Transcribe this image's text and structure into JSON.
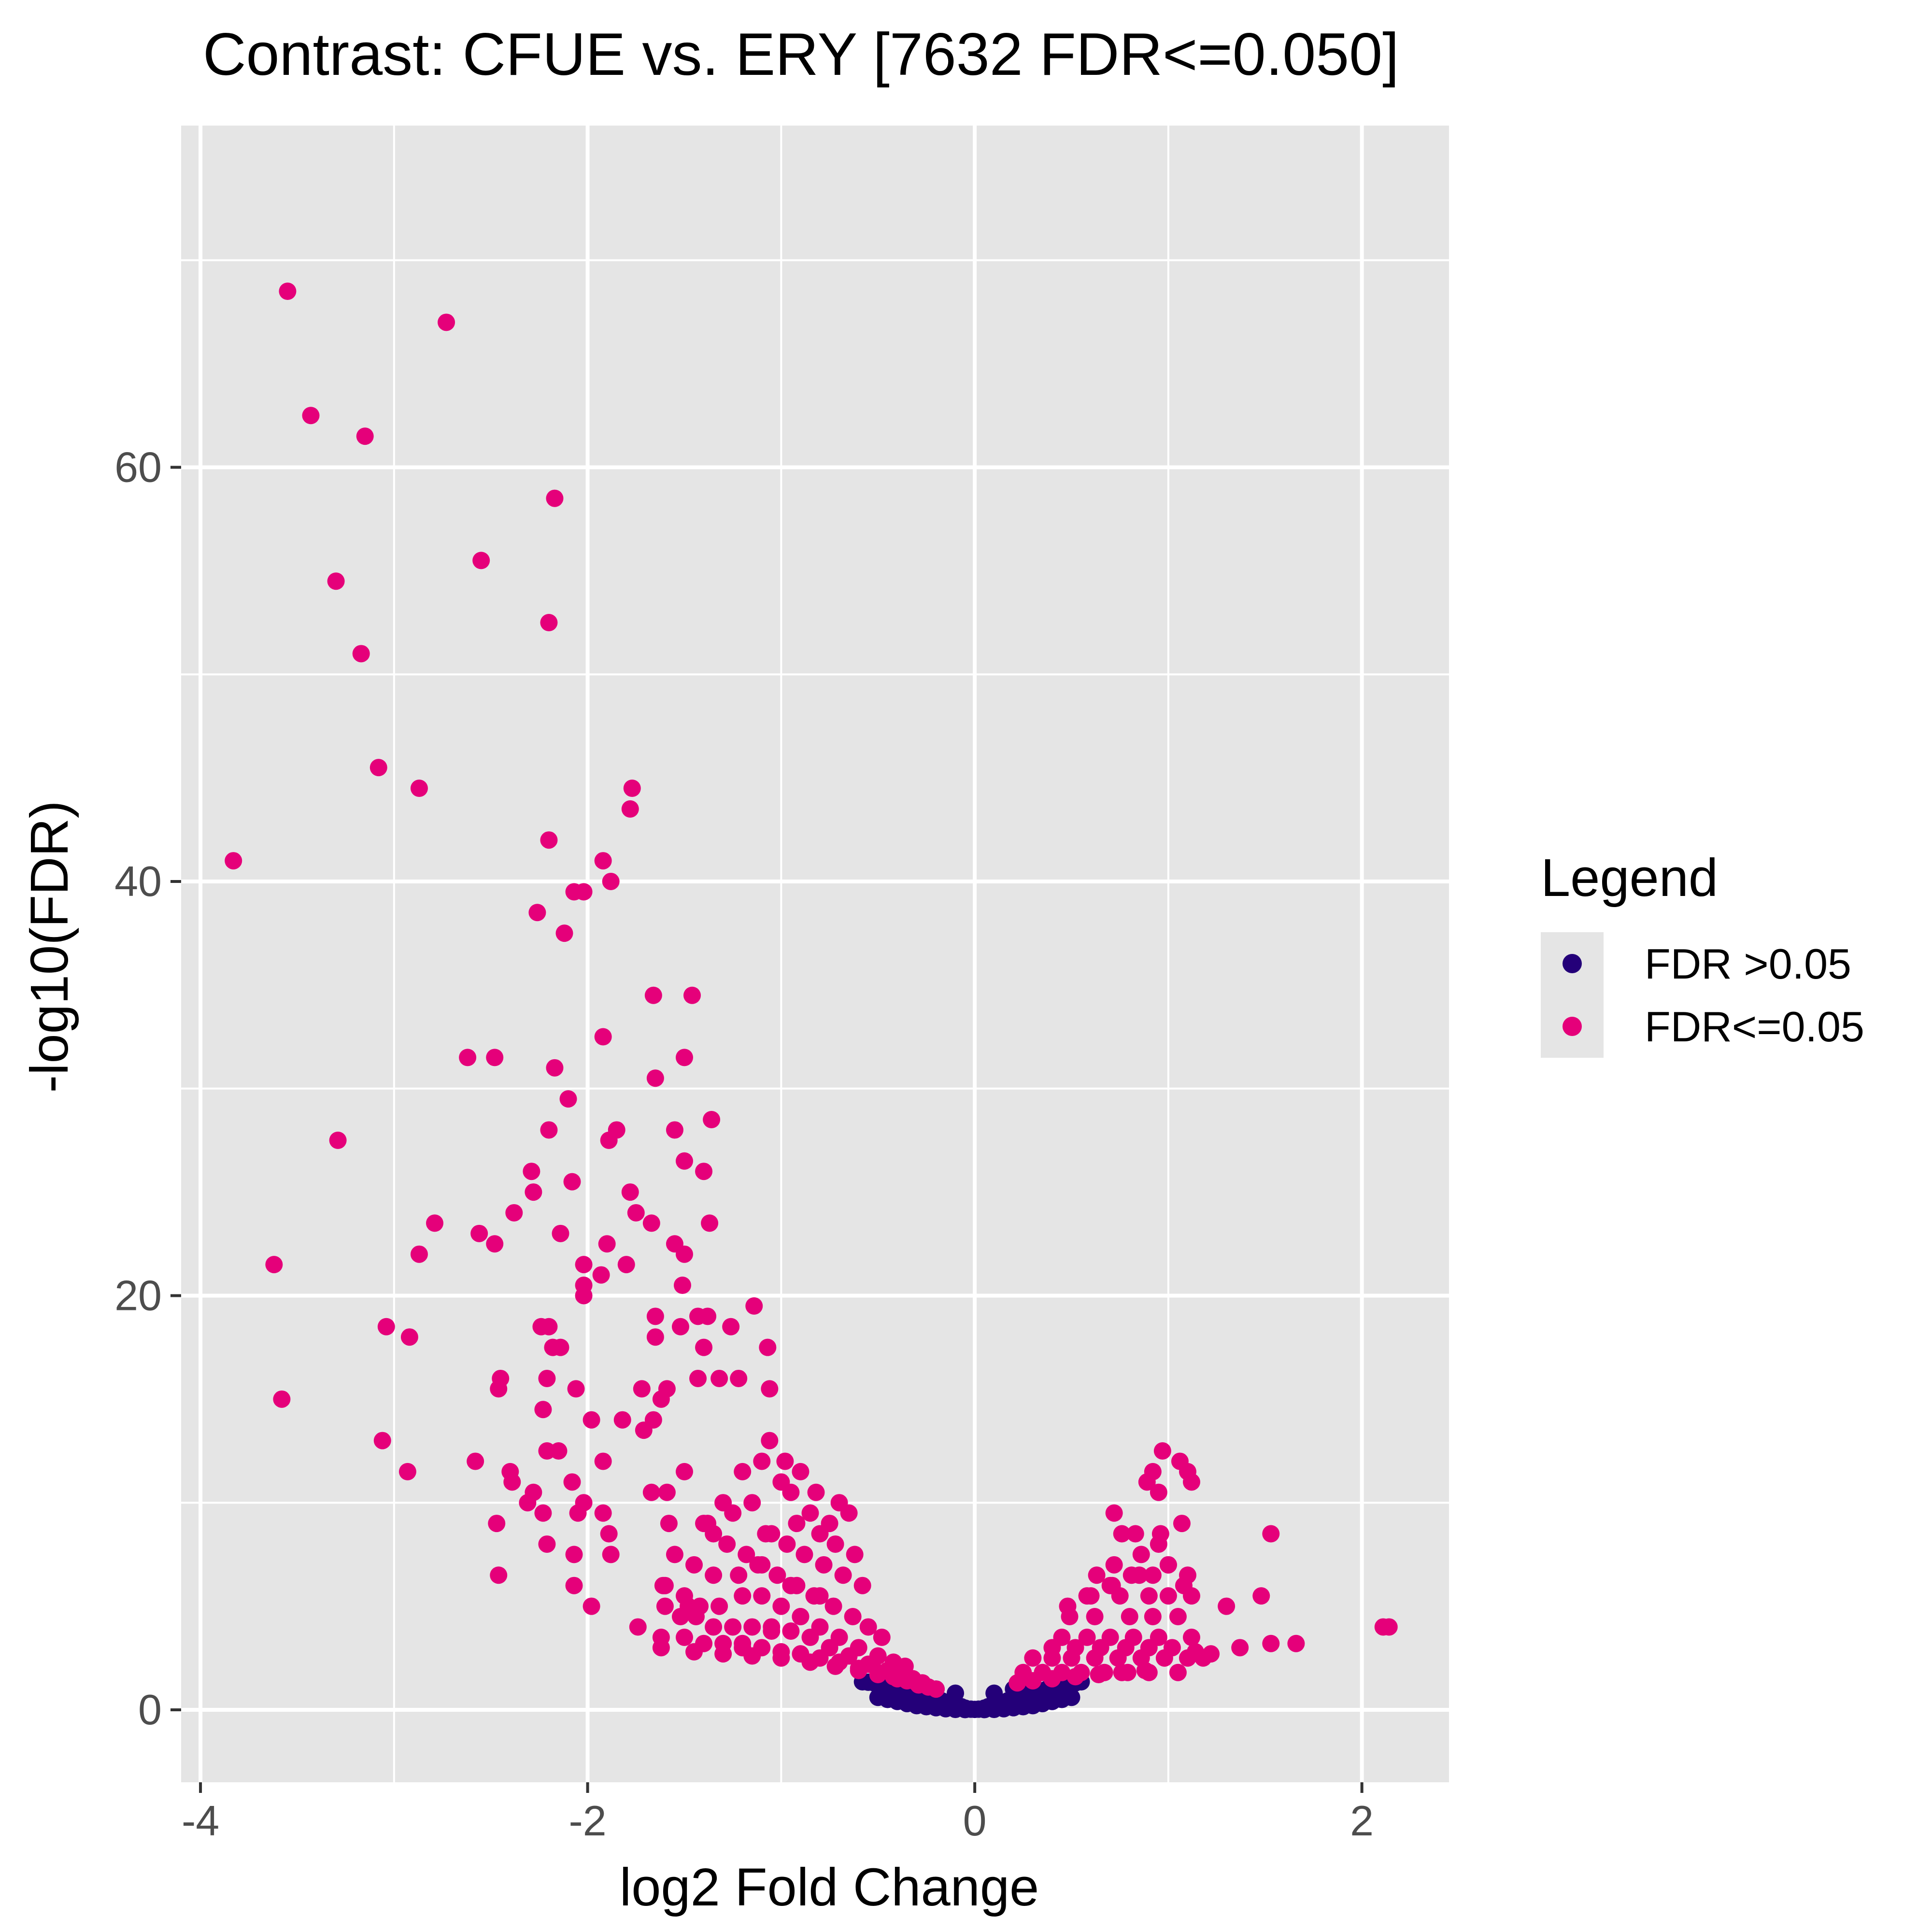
{
  "chart_data": {
    "type": "scatter",
    "title": "Contrast: CFUE vs. ERY  [7632 FDR<=0.050]",
    "xlabel": "log2 Fold Change",
    "ylabel": "-log10(FDR)",
    "xlim": [
      -4.1,
      2.45
    ],
    "ylim": [
      -3.5,
      76.5
    ],
    "x_ticks": [
      -4,
      -2,
      0,
      2
    ],
    "x_tick_labels": [
      "-4",
      "-2",
      "0",
      "2"
    ],
    "y_ticks": [
      0,
      20,
      40,
      60
    ],
    "y_tick_labels": [
      "0",
      "20",
      "40",
      "60"
    ],
    "grid": true,
    "panel_background": "#e5e5e5",
    "legend": {
      "title": "Legend",
      "position": "right",
      "entries": [
        {
          "label": "FDR >0.05",
          "color": "#240079"
        },
        {
          "label": "FDR<=0.05",
          "color": "#e5007a"
        }
      ]
    },
    "series": [
      {
        "name": "FDR>0.05",
        "color": "#240079",
        "x": [
          -0.58,
          -0.55,
          -0.52,
          -0.5,
          -0.47,
          -0.45,
          -0.42,
          -0.4,
          -0.37,
          -0.35,
          -0.32,
          -0.3,
          -0.27,
          -0.25,
          -0.22,
          -0.2,
          -0.17,
          -0.15,
          -0.12,
          -0.1,
          -0.07,
          -0.05,
          -0.02,
          0,
          0.02,
          0.05,
          0.07,
          0.1,
          0.12,
          0.15,
          0.17,
          0.2,
          0.22,
          0.25,
          0.27,
          0.3,
          0.32,
          0.35,
          0.37,
          0.4,
          0.42,
          0.45,
          0.47,
          0.5,
          0.52,
          0.55,
          -0.5,
          -0.45,
          -0.4,
          -0.35,
          -0.3,
          -0.25,
          -0.2,
          -0.15,
          -0.1,
          -0.05,
          0.05,
          0.1,
          0.15,
          0.2,
          0.25,
          0.3,
          0.35,
          0.4,
          0.45,
          0.5,
          -0.3,
          -0.2,
          -0.1,
          0.1,
          0.2,
          0.3
        ],
        "y": [
          1.35,
          1.33,
          1.3,
          1.25,
          1.2,
          1.15,
          1.1,
          1.05,
          0.98,
          0.92,
          0.85,
          0.78,
          0.72,
          0.65,
          0.58,
          0.5,
          0.43,
          0.36,
          0.3,
          0.22,
          0.15,
          0.08,
          0.03,
          0.02,
          0.03,
          0.08,
          0.15,
          0.22,
          0.3,
          0.36,
          0.43,
          0.5,
          0.58,
          0.65,
          0.72,
          0.78,
          0.85,
          0.92,
          0.98,
          1.05,
          1.1,
          1.15,
          1.2,
          1.25,
          1.3,
          1.35,
          0.6,
          0.5,
          0.4,
          0.3,
          0.2,
          0.15,
          0.1,
          0.05,
          0.02,
          0.01,
          0.01,
          0.02,
          0.05,
          0.1,
          0.15,
          0.2,
          0.3,
          0.4,
          0.5,
          0.6,
          1.2,
          1.0,
          0.8,
          0.8,
          1.0,
          1.2
        ]
      },
      {
        "name": "FDR<=0.05",
        "color": "#e5007a",
        "x": [
          -3.55,
          -2.73,
          -3.43,
          -3.15,
          -2.17,
          -2.55,
          -3.3,
          -2.2,
          -3.17,
          -3.08,
          -2.87,
          -1.77,
          -1.78,
          -3.83,
          -2.2,
          -1.92,
          -1.88,
          -2.07,
          -2.02,
          -2.26,
          -2.12,
          -1.66,
          -1.46,
          -1.92,
          -2.62,
          -2.48,
          -2.17,
          -1.65,
          -1.5,
          -2.1,
          -1.36,
          -1.89,
          -2.2,
          -1.85,
          -1.55,
          -1.5,
          -1.4,
          -3.29,
          -2.29,
          -2.08,
          -1.78,
          -1.75,
          -2.28,
          -2.38,
          -1.67,
          -1.37,
          -1.55,
          -1.5,
          -2.79,
          -2.56,
          -2.48,
          -2.14,
          -1.9,
          -2.02,
          -1.93,
          -2.87,
          -1.8,
          -3.62,
          -2.02,
          -2.02,
          -1.51,
          -1.65,
          -1.43,
          -1.52,
          -1.14,
          -1.38,
          -1.26,
          -3.04,
          -2.24,
          -2.2,
          -2.14,
          -2.18,
          -2.92,
          -1.65,
          -1.4,
          -1.07,
          -3.58,
          -2.46,
          -2.45,
          -2.21,
          -2.06,
          -1.72,
          -1.62,
          -1.59,
          -1.43,
          -1.32,
          -1.22,
          -1.06,
          -3.06,
          -2.21,
          -2.23,
          -1.98,
          -1.82,
          -1.71,
          -1.66,
          -2.93,
          -2.58,
          -2.15,
          -2.4,
          -2.08,
          -1.92,
          -1.5,
          -2.39,
          -2.28,
          -2.31,
          -2.02,
          -1.67,
          -1.59,
          -2.47,
          -2.23,
          -2.05,
          -1.92,
          -1.58,
          -1.38,
          -2.46,
          -2.21,
          -2.07,
          -1.89,
          -2.07,
          -1.88,
          -1.98,
          -1.61,
          -1.74,
          -1.48,
          -1.06,
          -0.98,
          -0.9,
          -0.82,
          -0.7,
          -0.65,
          -1.2,
          -1.1,
          -1.0,
          -0.95,
          -0.85,
          -0.75,
          -1.3,
          -1.25,
          -1.15,
          -1.05,
          -0.92,
          -0.8,
          -0.72,
          -0.62,
          -1.4,
          -1.35,
          -1.28,
          -1.18,
          -1.08,
          -0.97,
          -0.88,
          -0.78,
          -0.68,
          -0.58,
          -1.55,
          -1.45,
          -1.35,
          -1.22,
          -1.12,
          -1.02,
          -0.92,
          -0.83,
          -0.73,
          -0.63,
          -0.55,
          -0.48,
          -1.6,
          -1.5,
          -1.42,
          -1.32,
          -1.2,
          -1.1,
          -1.0,
          -0.9,
          -0.8,
          -0.7,
          -0.6,
          -0.5,
          -0.42,
          -0.36,
          -1.6,
          -1.52,
          -1.44,
          -1.35,
          -1.25,
          -1.15,
          -1.05,
          -0.95,
          -0.85,
          -0.75,
          -0.65,
          -0.55,
          -0.45,
          -0.38,
          -0.32,
          -0.27,
          -1.62,
          -1.5,
          -1.4,
          -1.3,
          -1.2,
          -1.1,
          -1.0,
          -0.9,
          -0.8,
          -0.7,
          -0.6,
          -0.5,
          -0.42,
          -0.35,
          -0.29,
          -0.24,
          -0.2,
          -1.62,
          -1.45,
          -1.3,
          -1.15,
          -1.0,
          -0.85,
          -0.72,
          -0.6,
          -0.5,
          -0.4,
          -0.3,
          -1.1,
          -0.95,
          -0.8,
          -0.9,
          -1.05,
          -1.2,
          0.97,
          1.06,
          1.1,
          0.89,
          0.92,
          1.12,
          0.72,
          0.95,
          0.76,
          0.96,
          1.07,
          0.83,
          0.86,
          0.95,
          0.72,
          1.08,
          0.92,
          1.53,
          0.63,
          0.71,
          0.81,
          1.0,
          1.1,
          0.58,
          0.75,
          0.9,
          1.0,
          1.12,
          1.48,
          0.49,
          0.62,
          0.8,
          0.92,
          1.05,
          1.3,
          0.45,
          0.58,
          0.7,
          0.82,
          0.95,
          1.12,
          1.53,
          1.66,
          0.4,
          0.52,
          0.65,
          0.78,
          0.9,
          1.02,
          1.14,
          1.22,
          1.37,
          2.11,
          2.14,
          0.3,
          0.4,
          0.5,
          0.62,
          0.74,
          0.86,
          0.98,
          1.1,
          1.18,
          0.25,
          0.35,
          0.45,
          0.55,
          0.67,
          0.79,
          0.9,
          1.05,
          0.22,
          0.3,
          0.4,
          0.52,
          0.64,
          0.76,
          0.88,
          0.48,
          0.6,
          0.7,
          0.85,
          1.0
        ],
        "y": [
          68.5,
          67,
          62.5,
          61.5,
          58.5,
          55.5,
          54.5,
          52.5,
          51,
          45.5,
          44.5,
          44.5,
          43.5,
          41,
          42,
          41,
          40,
          39.5,
          39.5,
          38.5,
          37.5,
          34.5,
          34.5,
          32.5,
          31.5,
          31.5,
          31,
          30.5,
          31.5,
          29.5,
          28.5,
          27.5,
          28,
          28,
          28,
          26.5,
          26,
          27.5,
          26,
          25.5,
          25,
          24,
          25,
          24,
          23.5,
          23.5,
          22.5,
          22,
          23.5,
          23,
          22.5,
          23,
          22.5,
          21.5,
          21,
          22,
          21.5,
          21.5,
          20.5,
          20,
          20.5,
          19,
          19,
          18.5,
          19.5,
          19,
          18.5,
          18.5,
          18.5,
          18.5,
          17.5,
          17.5,
          18,
          18,
          17.5,
          17.5,
          15,
          15.5,
          16,
          16,
          15.5,
          15.5,
          15,
          15.5,
          16,
          16,
          16,
          15.5,
          13,
          12.5,
          14.5,
          14,
          14,
          13.5,
          14,
          11.5,
          12,
          12.5,
          11.5,
          11,
          12,
          11.5,
          11,
          10.5,
          10,
          10,
          10.5,
          10.5,
          9,
          9.5,
          9.5,
          9.5,
          9,
          9,
          6.5,
          8,
          7.5,
          8.5,
          6,
          7.5,
          5,
          6,
          4,
          5,
          13,
          12,
          11.5,
          10.5,
          10,
          9.5,
          11.5,
          12,
          11,
          10.5,
          9.5,
          9,
          10,
          9.5,
          10,
          8.5,
          9,
          8.5,
          8,
          7.5,
          9,
          8.5,
          8,
          7.5,
          8.5,
          8,
          7.5,
          7,
          6.5,
          6,
          7.5,
          7,
          6.5,
          6.5,
          7,
          6.5,
          6,
          5.5,
          5,
          4.5,
          4,
          3.5,
          6,
          5.5,
          5,
          5,
          5.5,
          5.5,
          5,
          4.5,
          4,
          3.5,
          3,
          2.6,
          2.3,
          2.1,
          5,
          4.5,
          4.5,
          4,
          4,
          4,
          4,
          3.8,
          3.5,
          3,
          2.6,
          2.2,
          1.9,
          1.7,
          1.5,
          1.3,
          3.5,
          3.5,
          3.2,
          3.2,
          3,
          3,
          2.8,
          2.7,
          2.5,
          2.3,
          2,
          1.8,
          1.6,
          1.4,
          1.2,
          1.1,
          1,
          3,
          2.8,
          2.7,
          2.6,
          2.5,
          2.3,
          2.1,
          1.9,
          1.7,
          1.5,
          1.3,
          7,
          6,
          5.5,
          4.5,
          3.8,
          3.2,
          12.5,
          12,
          11.5,
          11,
          11.5,
          11,
          9.5,
          10.5,
          8.5,
          8.5,
          9,
          8.5,
          7.5,
          8,
          7,
          6,
          6.5,
          8.5,
          6.5,
          6,
          6.5,
          7,
          6.5,
          5.5,
          5.5,
          5.5,
          5.5,
          5.5,
          5.5,
          4.5,
          4.5,
          4.5,
          4.5,
          4.5,
          5,
          3.5,
          3.5,
          3.5,
          3.5,
          3.5,
          3.5,
          3.2,
          3.2,
          3,
          3,
          3,
          3,
          3,
          3,
          2.8,
          2.7,
          3,
          4,
          4,
          2.5,
          2.5,
          2.5,
          2.5,
          2.5,
          2.5,
          2.5,
          2.5,
          2.5,
          1.8,
          1.8,
          1.8,
          1.8,
          1.8,
          1.8,
          1.8,
          1.8,
          1.3,
          1.4,
          1.5,
          1.6,
          1.7,
          1.8,
          1.9,
          5,
          5.5,
          6,
          6.5,
          7
        ]
      }
    ]
  }
}
